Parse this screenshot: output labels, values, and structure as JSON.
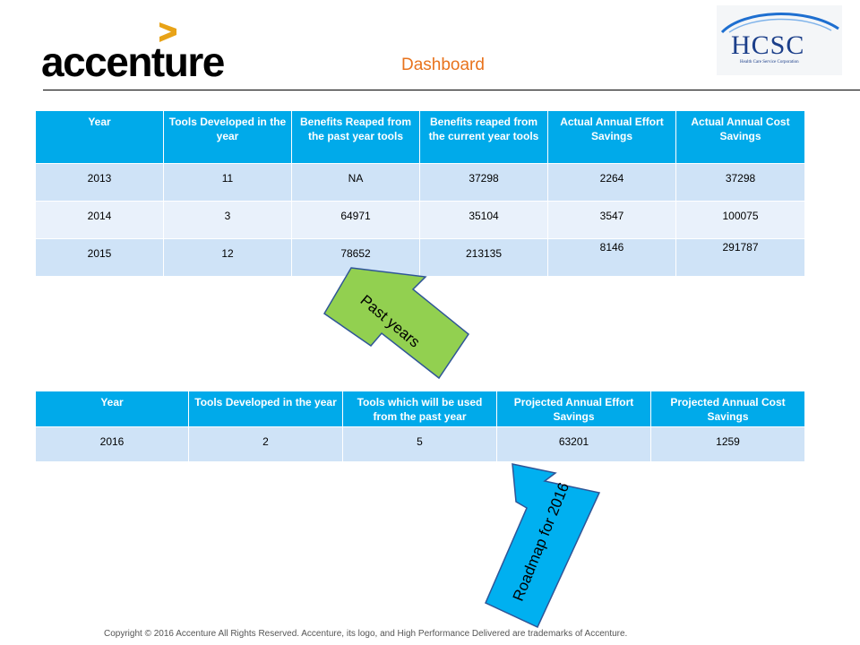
{
  "header": {
    "brand": "accenture",
    "title": "Dashboard",
    "partner_logo_text": "HCSC",
    "partner_logo_subtext": "Health Care Service Corporation"
  },
  "past_table": {
    "headers": [
      "Year",
      "Tools Developed in the year",
      "Benefits Reaped from the past year tools",
      "Benefits reaped from the current year tools",
      "Actual Annual Effort  Savings",
      "Actual Annual Cost Savings"
    ],
    "rows": [
      [
        "2013",
        "11",
        "NA",
        "37298",
        "2264",
        "37298"
      ],
      [
        "2014",
        "3",
        "64971",
        "35104",
        "3547",
        "100075"
      ],
      [
        "2015",
        "12",
        "78652",
        "213135",
        "8146",
        "291787"
      ]
    ]
  },
  "roadmap_table": {
    "headers": [
      "Year",
      "Tools Developed in the year",
      "Tools which will be used from the past year",
      "Projected Annual Effort Savings",
      "Projected Annual Cost Savings"
    ],
    "rows": [
      [
        "2016",
        "2",
        "5",
        "63201",
        "1259"
      ]
    ]
  },
  "callouts": {
    "past_years": "Past years",
    "roadmap": "Roadmap for 2016"
  },
  "colors": {
    "header_cell": "#00aaea",
    "row_dark": "#cfe3f7",
    "row_light": "#e9f1fb",
    "title": "#e8731d",
    "past_arrow": "#92d050",
    "roadmap_arrow": "#00b0f0"
  },
  "footer": "Copyright © 2016  Accenture  All Rights Reserved. Accenture, its logo, and High Performance Delivered are trademarks of Accenture."
}
